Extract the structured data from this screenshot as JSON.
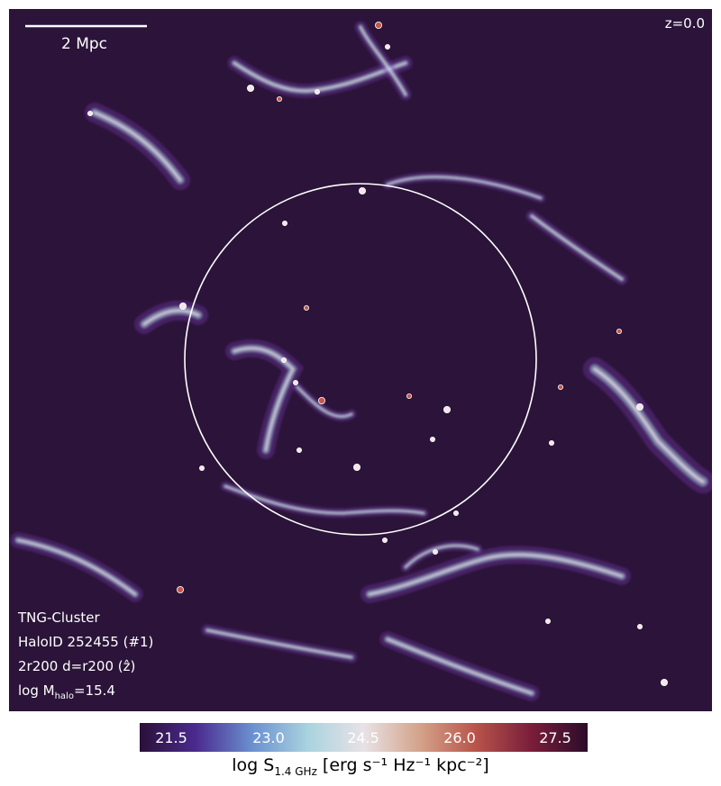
{
  "map": {
    "redshift": "z=0.0",
    "scalebar_label": "2 Mpc",
    "info": {
      "line1": "TNG-Cluster",
      "line2": "HaloID 252455 (#1)",
      "line3": "2r200 d=r200 (ẑ)",
      "line4_prefix": "log M",
      "line4_sub": "halo",
      "line4_suffix": "=15.4"
    },
    "colors": {
      "background": "#2b1339",
      "circle": "#ffffff",
      "emission_low": "#7a3fb5",
      "emission_mid": "#9fc6dc",
      "emission_high": "#f3e6ea",
      "emission_peak": "#c4584a"
    }
  },
  "colorbar": {
    "ticks": [
      "21.5",
      "23.0",
      "24.5",
      "26.0",
      "27.5"
    ],
    "label_prefix": "log S",
    "label_sub": "1.4 GHz",
    "label_unit": " [erg s⁻¹ Hz⁻¹ kpc⁻²]",
    "stops": [
      "#2a1038",
      "#4b2a8e",
      "#6a8fd0",
      "#a9d3df",
      "#e8e2e6",
      "#d4a38a",
      "#b8544a",
      "#7a1d3a",
      "#2b0c2a"
    ]
  }
}
